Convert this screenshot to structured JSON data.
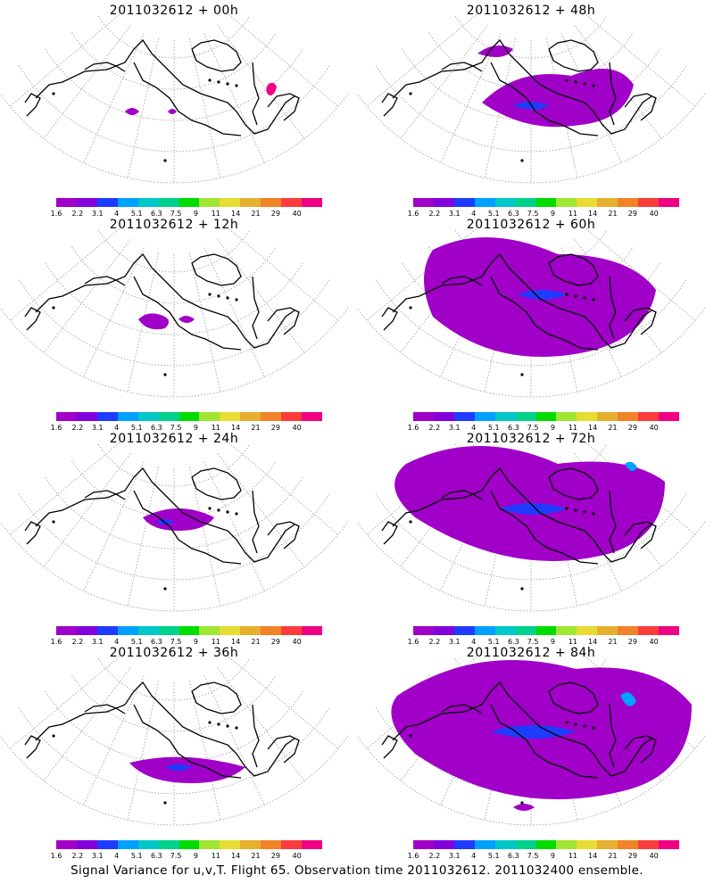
{
  "caption": "Signal Variance for u,v,T. Flight 65. Observation time 2011032612. 2011032400 ensemble.",
  "colorbar": {
    "labels": [
      "1.6",
      "2.2",
      "3.1",
      "4",
      "5.1",
      "6.3",
      "7.5",
      "9",
      "11",
      "14",
      "21",
      "29",
      "40"
    ],
    "colors": [
      "#a000c8",
      "#8200dc",
      "#1e3cff",
      "#00a0ff",
      "#00c8c8",
      "#00d28c",
      "#00dc00",
      "#a0e632",
      "#e6dc32",
      "#e6af2d",
      "#f08228",
      "#fa3c3c",
      "#f00082"
    ]
  },
  "panels": [
    {
      "title": "2011032612 + 00h",
      "extent": 0
    },
    {
      "title": "2011032612 + 48h",
      "extent": 4
    },
    {
      "title": "2011032612 + 12h",
      "extent": 1
    },
    {
      "title": "2011032612 + 60h",
      "extent": 5
    },
    {
      "title": "2011032612 + 24h",
      "extent": 2
    },
    {
      "title": "2011032612 + 72h",
      "extent": 6
    },
    {
      "title": "2011032612 + 36h",
      "extent": 3
    },
    {
      "title": "2011032612 + 84h",
      "extent": 7
    }
  ]
}
